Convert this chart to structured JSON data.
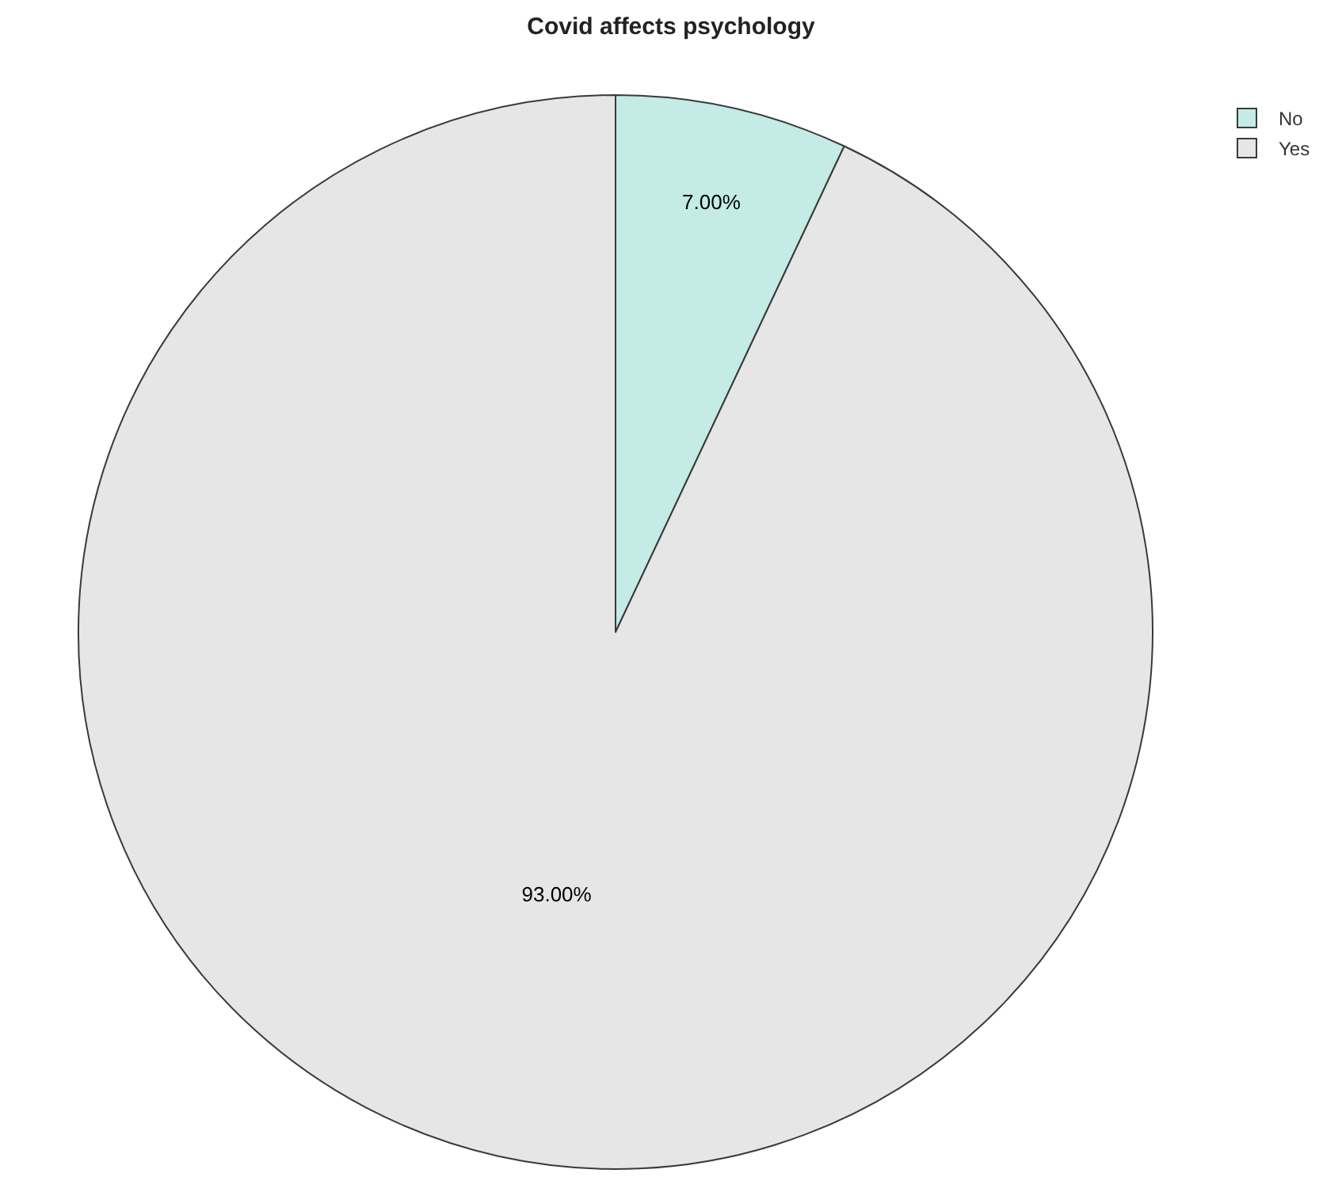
{
  "chart_data": {
    "type": "pie",
    "title": "Covid affects psychology",
    "categories": [
      "No",
      "Yes"
    ],
    "values": [
      7,
      93
    ],
    "colors": [
      "#c4ebe5",
      "#e6e6e6"
    ],
    "value_labels": [
      "7.00%",
      "93.00%"
    ],
    "legend": "top right"
  }
}
